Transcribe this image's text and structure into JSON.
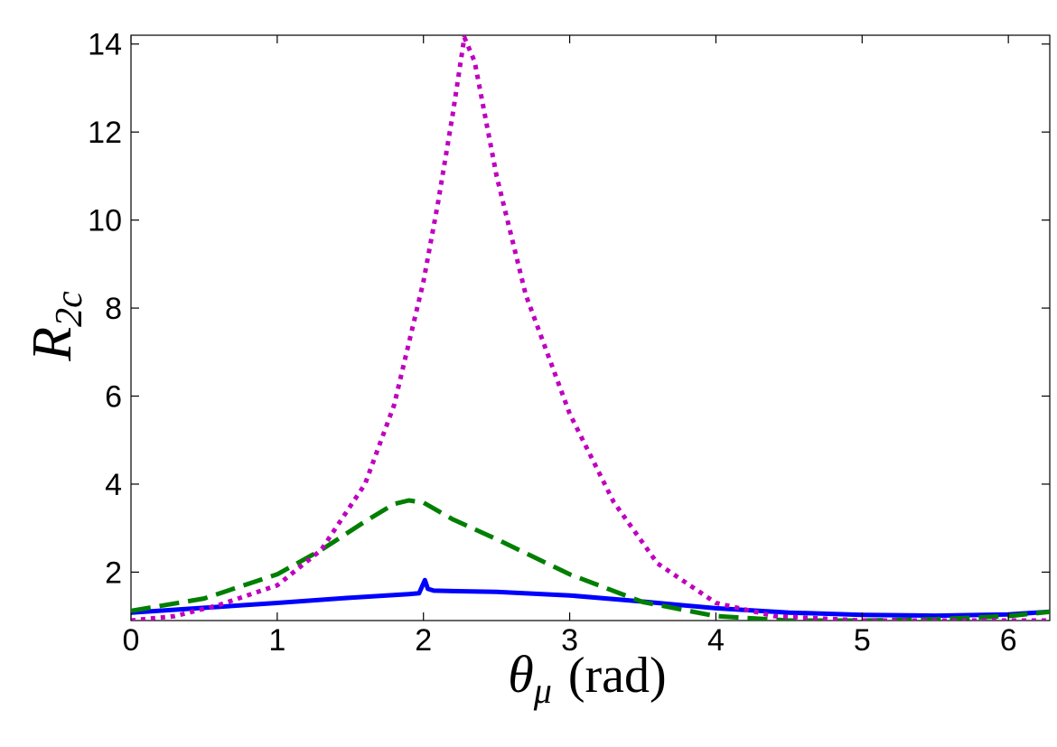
{
  "chart_data": {
    "type": "line",
    "title": "",
    "xlabel_symbol": "θ",
    "xlabel_subscript": "μ",
    "xlabel_unit": "(rad)",
    "ylabel_symbol": "R",
    "ylabel_subscript": "2c",
    "xlim": [
      0,
      6.2832
    ],
    "ylim": [
      0.9,
      14.2
    ],
    "xticks": [
      0,
      1,
      2,
      3,
      4,
      5,
      6
    ],
    "yticks": [
      2,
      4,
      6,
      8,
      10,
      12,
      14
    ],
    "grid": false,
    "legend": null,
    "series": [
      {
        "name": "solid",
        "color": "#0000ff",
        "style": "solid",
        "x": [
          0,
          0.5,
          1.0,
          1.5,
          1.9,
          1.97,
          2.01,
          2.03,
          2.07,
          2.2,
          2.5,
          3.0,
          3.5,
          4.0,
          4.5,
          5.0,
          5.5,
          6.0,
          6.2832
        ],
        "y": [
          1.08,
          1.19,
          1.3,
          1.42,
          1.5,
          1.52,
          1.82,
          1.62,
          1.58,
          1.57,
          1.55,
          1.47,
          1.33,
          1.18,
          1.08,
          1.03,
          1.01,
          1.04,
          1.1
        ]
      },
      {
        "name": "dashed",
        "color": "#007f00",
        "style": "dashed",
        "x": [
          0,
          0.5,
          1.0,
          1.3,
          1.6,
          1.8,
          1.9,
          2.0,
          2.2,
          2.5,
          3.0,
          3.5,
          4.0,
          4.5,
          5.0,
          5.5,
          6.0,
          6.2832
        ],
        "y": [
          1.12,
          1.4,
          1.95,
          2.5,
          3.15,
          3.55,
          3.63,
          3.58,
          3.2,
          2.75,
          1.95,
          1.32,
          1.0,
          0.9,
          0.9,
          0.93,
          1.0,
          1.1
        ]
      },
      {
        "name": "dotted",
        "color": "#bf00bf",
        "style": "dotted",
        "x": [
          0,
          0.3,
          0.6,
          1.0,
          1.3,
          1.6,
          1.8,
          2.0,
          2.1,
          2.2,
          2.28,
          2.35,
          2.5,
          2.7,
          3.0,
          3.3,
          3.6,
          4.0,
          4.4,
          5.0,
          5.5,
          6.0,
          6.2832
        ],
        "y": [
          0.9,
          1.0,
          1.25,
          1.7,
          2.5,
          4.0,
          5.8,
          8.6,
          10.4,
          12.4,
          14.15,
          13.6,
          11.0,
          8.3,
          5.6,
          3.6,
          2.2,
          1.3,
          1.0,
          0.9,
          0.9,
          0.9,
          0.9
        ]
      }
    ]
  }
}
